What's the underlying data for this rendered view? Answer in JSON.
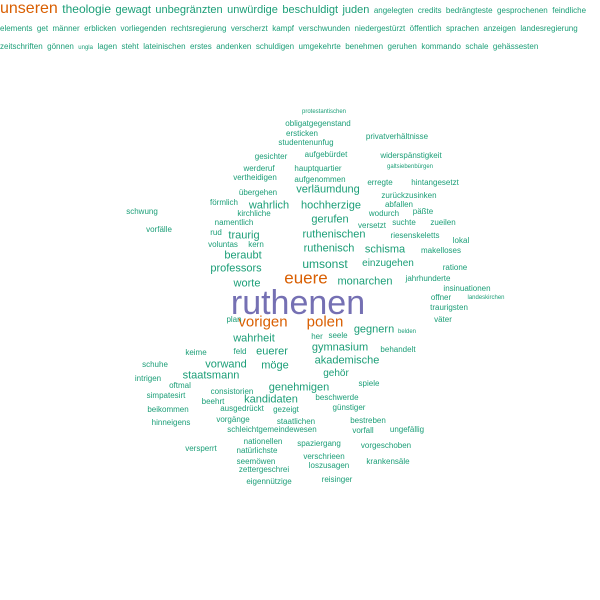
{
  "colors": {
    "large": "#7570b3",
    "medium": "#d95f02",
    "small": "#1b9e77"
  },
  "words": [
    {
      "text": "ruthenen",
      "tier": "large",
      "vertical": false
    },
    {
      "text": "euere",
      "tier": "medium",
      "vertical": false
    },
    {
      "text": "unseren",
      "tier": "medium",
      "vertical": true
    },
    {
      "text": "vorigen",
      "tier": "medium",
      "vertical": false
    },
    {
      "text": "polen",
      "tier": "medium",
      "vertical": false
    },
    {
      "text": "umsonst",
      "tier": "small",
      "vertical": false
    },
    {
      "text": "ruthenisch",
      "tier": "small",
      "vertical": false
    },
    {
      "text": "schisma",
      "tier": "small",
      "vertical": false
    },
    {
      "text": "einzugehen",
      "tier": "small",
      "vertical": false
    },
    {
      "text": "monarchen",
      "tier": "small",
      "vertical": false
    },
    {
      "text": "gymnasium",
      "tier": "small",
      "vertical": false
    },
    {
      "text": "akademische",
      "tier": "small",
      "vertical": false
    },
    {
      "text": "gegnern",
      "tier": "small",
      "vertical": false
    },
    {
      "text": "wahrheit",
      "tier": "small",
      "vertical": false
    },
    {
      "text": "möge",
      "tier": "small",
      "vertical": false
    },
    {
      "text": "euerer",
      "tier": "small",
      "vertical": false
    },
    {
      "text": "gehör",
      "tier": "small",
      "vertical": false
    },
    {
      "text": "staatsmann",
      "tier": "small",
      "vertical": false
    },
    {
      "text": "vorwand",
      "tier": "small",
      "vertical": false
    },
    {
      "text": "genehmigen",
      "tier": "small",
      "vertical": false
    },
    {
      "text": "kandidaten",
      "tier": "small",
      "vertical": false
    },
    {
      "text": "professors",
      "tier": "small",
      "vertical": false
    },
    {
      "text": "beraubt",
      "tier": "small",
      "vertical": false
    },
    {
      "text": "traurig",
      "tier": "small",
      "vertical": false
    },
    {
      "text": "worte",
      "tier": "small",
      "vertical": false
    },
    {
      "text": "wahrlich",
      "tier": "small",
      "vertical": false
    },
    {
      "text": "hochherzige",
      "tier": "small",
      "vertical": false
    },
    {
      "text": "verläumdung",
      "tier": "small",
      "vertical": false
    },
    {
      "text": "gerufen",
      "tier": "small",
      "vertical": false
    },
    {
      "text": "ruthenischen",
      "tier": "small",
      "vertical": false
    },
    {
      "text": "theologie",
      "tier": "small",
      "vertical": true
    },
    {
      "text": "gewagt",
      "tier": "small",
      "vertical": true
    },
    {
      "text": "unbegränzten",
      "tier": "small",
      "vertical": true
    },
    {
      "text": "unwürdige",
      "tier": "small",
      "vertical": true
    },
    {
      "text": "beschuldigt",
      "tier": "small",
      "vertical": true
    },
    {
      "text": "juden",
      "tier": "small",
      "vertical": true
    },
    {
      "text": "protestantischen",
      "tier": "small",
      "vertical": false
    },
    {
      "text": "obligatgegenstand",
      "tier": "small",
      "vertical": false
    },
    {
      "text": "ersticken",
      "tier": "small",
      "vertical": false
    },
    {
      "text": "privatverhältnisse",
      "tier": "small",
      "vertical": false
    },
    {
      "text": "studentenunfug",
      "tier": "small",
      "vertical": false
    },
    {
      "text": "aufgebürdet",
      "tier": "small",
      "vertical": false
    },
    {
      "text": "gesichter",
      "tier": "small",
      "vertical": false
    },
    {
      "text": "widerspänstigkeit",
      "tier": "small",
      "vertical": false
    },
    {
      "text": "werderuf",
      "tier": "small",
      "vertical": false
    },
    {
      "text": "hauptquartier",
      "tier": "small",
      "vertical": false
    },
    {
      "text": "galtsiebenbürgen",
      "tier": "small",
      "vertical": false
    },
    {
      "text": "vertheidigen",
      "tier": "small",
      "vertical": false
    },
    {
      "text": "aufgenommen",
      "tier": "small",
      "vertical": false
    },
    {
      "text": "erregte",
      "tier": "small",
      "vertical": false
    },
    {
      "text": "hintangesetzt",
      "tier": "small",
      "vertical": false
    },
    {
      "text": "übergehen",
      "tier": "small",
      "vertical": false
    },
    {
      "text": "zurückzusinken",
      "tier": "small",
      "vertical": false
    },
    {
      "text": "förmlich",
      "tier": "small",
      "vertical": false
    },
    {
      "text": "abfallen",
      "tier": "small",
      "vertical": false
    },
    {
      "text": "schwung",
      "tier": "small",
      "vertical": false
    },
    {
      "text": "kirchliche",
      "tier": "small",
      "vertical": false
    },
    {
      "text": "wodurch",
      "tier": "small",
      "vertical": false
    },
    {
      "text": "päßte",
      "tier": "small",
      "vertical": false
    },
    {
      "text": "namentlich",
      "tier": "small",
      "vertical": false
    },
    {
      "text": "versetzt",
      "tier": "small",
      "vertical": false
    },
    {
      "text": "suchte",
      "tier": "small",
      "vertical": false
    },
    {
      "text": "zueilen",
      "tier": "small",
      "vertical": false
    },
    {
      "text": "vorfälle",
      "tier": "small",
      "vertical": false
    },
    {
      "text": "rud",
      "tier": "small",
      "vertical": false
    },
    {
      "text": "riesenskeletts",
      "tier": "small",
      "vertical": false
    },
    {
      "text": "lokal",
      "tier": "small",
      "vertical": false
    },
    {
      "text": "voluntas",
      "tier": "small",
      "vertical": false
    },
    {
      "text": "kern",
      "tier": "small",
      "vertical": false
    },
    {
      "text": "makelloses",
      "tier": "small",
      "vertical": false
    },
    {
      "text": "ratione",
      "tier": "small",
      "vertical": false
    },
    {
      "text": "jahrhunderte",
      "tier": "small",
      "vertical": false
    },
    {
      "text": "insinuationen",
      "tier": "small",
      "vertical": false
    },
    {
      "text": "offner",
      "tier": "small",
      "vertical": false
    },
    {
      "text": "landeskirchen",
      "tier": "small",
      "vertical": false
    },
    {
      "text": "traurigsten",
      "tier": "small",
      "vertical": false
    },
    {
      "text": "väter",
      "tier": "small",
      "vertical": false
    },
    {
      "text": "plan",
      "tier": "small",
      "vertical": false
    },
    {
      "text": "seele",
      "tier": "small",
      "vertical": false
    },
    {
      "text": "her",
      "tier": "small",
      "vertical": false
    },
    {
      "text": "belden",
      "tier": "small",
      "vertical": false
    },
    {
      "text": "behandelt",
      "tier": "small",
      "vertical": false
    },
    {
      "text": "keime",
      "tier": "small",
      "vertical": false
    },
    {
      "text": "feld",
      "tier": "small",
      "vertical": false
    },
    {
      "text": "schuhe",
      "tier": "small",
      "vertical": false
    },
    {
      "text": "intrigen",
      "tier": "small",
      "vertical": false
    },
    {
      "text": "oftmal",
      "tier": "small",
      "vertical": false
    },
    {
      "text": "spiele",
      "tier": "small",
      "vertical": false
    },
    {
      "text": "simpatesirt",
      "tier": "small",
      "vertical": false
    },
    {
      "text": "consistorien",
      "tier": "small",
      "vertical": false
    },
    {
      "text": "beschwerde",
      "tier": "small",
      "vertical": false
    },
    {
      "text": "beehrt",
      "tier": "small",
      "vertical": false
    },
    {
      "text": "ausgedrückt",
      "tier": "small",
      "vertical": false
    },
    {
      "text": "gezeigt",
      "tier": "small",
      "vertical": false
    },
    {
      "text": "günstiger",
      "tier": "small",
      "vertical": false
    },
    {
      "text": "beikommen",
      "tier": "small",
      "vertical": false
    },
    {
      "text": "vorgänge",
      "tier": "small",
      "vertical": false
    },
    {
      "text": "staatlichen",
      "tier": "small",
      "vertical": false
    },
    {
      "text": "bestreben",
      "tier": "small",
      "vertical": false
    },
    {
      "text": "hinneigens",
      "tier": "small",
      "vertical": false
    },
    {
      "text": "schleichtgemeindewesen",
      "tier": "small",
      "vertical": false
    },
    {
      "text": "vorfall",
      "tier": "small",
      "vertical": false
    },
    {
      "text": "ungefällig",
      "tier": "small",
      "vertical": false
    },
    {
      "text": "nationellen",
      "tier": "small",
      "vertical": false
    },
    {
      "text": "spaziergang",
      "tier": "small",
      "vertical": false
    },
    {
      "text": "vorgeschoben",
      "tier": "small",
      "vertical": false
    },
    {
      "text": "versperrt",
      "tier": "small",
      "vertical": false
    },
    {
      "text": "natürlichste",
      "tier": "small",
      "vertical": false
    },
    {
      "text": "verschrieen",
      "tier": "small",
      "vertical": false
    },
    {
      "text": "seemöwen",
      "tier": "small",
      "vertical": false
    },
    {
      "text": "loszusagen",
      "tier": "small",
      "vertical": false
    },
    {
      "text": "krankensäle",
      "tier": "small",
      "vertical": false
    },
    {
      "text": "zettergeschrei",
      "tier": "small",
      "vertical": false
    },
    {
      "text": "eigennützige",
      "tier": "small",
      "vertical": false
    },
    {
      "text": "reisinger",
      "tier": "small",
      "vertical": false
    },
    {
      "text": "angelegten",
      "tier": "small",
      "vertical": true
    },
    {
      "text": "credits",
      "tier": "small",
      "vertical": true
    },
    {
      "text": "bedrängteste",
      "tier": "small",
      "vertical": true
    },
    {
      "text": "gesprochenen",
      "tier": "small",
      "vertical": true
    },
    {
      "text": "feindliche",
      "tier": "small",
      "vertical": true
    },
    {
      "text": "elements",
      "tier": "small",
      "vertical": true
    },
    {
      "text": "get",
      "tier": "small",
      "vertical": true
    },
    {
      "text": "männer",
      "tier": "small",
      "vertical": true
    },
    {
      "text": "erblicken",
      "tier": "small",
      "vertical": true
    },
    {
      "text": "vorliegenden",
      "tier": "small",
      "vertical": true
    },
    {
      "text": "rechtsregierung",
      "tier": "small",
      "vertical": true
    },
    {
      "text": "verscherzt",
      "tier": "small",
      "vertical": true
    },
    {
      "text": "kampf",
      "tier": "small",
      "vertical": true
    },
    {
      "text": "verschwunden",
      "tier": "small",
      "vertical": true
    },
    {
      "text": "niedergestürzt",
      "tier": "small",
      "vertical": true
    },
    {
      "text": "öffentlich",
      "tier": "small",
      "vertical": true
    },
    {
      "text": "sprachen",
      "tier": "small",
      "vertical": true
    },
    {
      "text": "anzeigen",
      "tier": "small",
      "vertical": true
    },
    {
      "text": "landesregierung",
      "tier": "small",
      "vertical": true
    },
    {
      "text": "zeitschriften",
      "tier": "small",
      "vertical": true
    },
    {
      "text": "gönnen",
      "tier": "small",
      "vertical": true
    },
    {
      "text": "ungla",
      "tier": "small",
      "vertical": true
    },
    {
      "text": "lagen",
      "tier": "small",
      "vertical": true
    },
    {
      "text": "steht",
      "tier": "small",
      "vertical": true
    },
    {
      "text": "lateinischen",
      "tier": "small",
      "vertical": true
    },
    {
      "text": "erstes",
      "tier": "small",
      "vertical": true
    },
    {
      "text": "andenken",
      "tier": "small",
      "vertical": true
    },
    {
      "text": "schuldigen",
      "tier": "small",
      "vertical": true
    },
    {
      "text": "umgekehrte",
      "tier": "small",
      "vertical": true
    },
    {
      "text": "benehmen",
      "tier": "small",
      "vertical": true
    },
    {
      "text": "geruhen",
      "tier": "small",
      "vertical": true
    },
    {
      "text": "kommando",
      "tier": "small",
      "vertical": true
    },
    {
      "text": "schale",
      "tier": "small",
      "vertical": true
    },
    {
      "text": "gehässesten",
      "tier": "small",
      "vertical": true
    }
  ]
}
